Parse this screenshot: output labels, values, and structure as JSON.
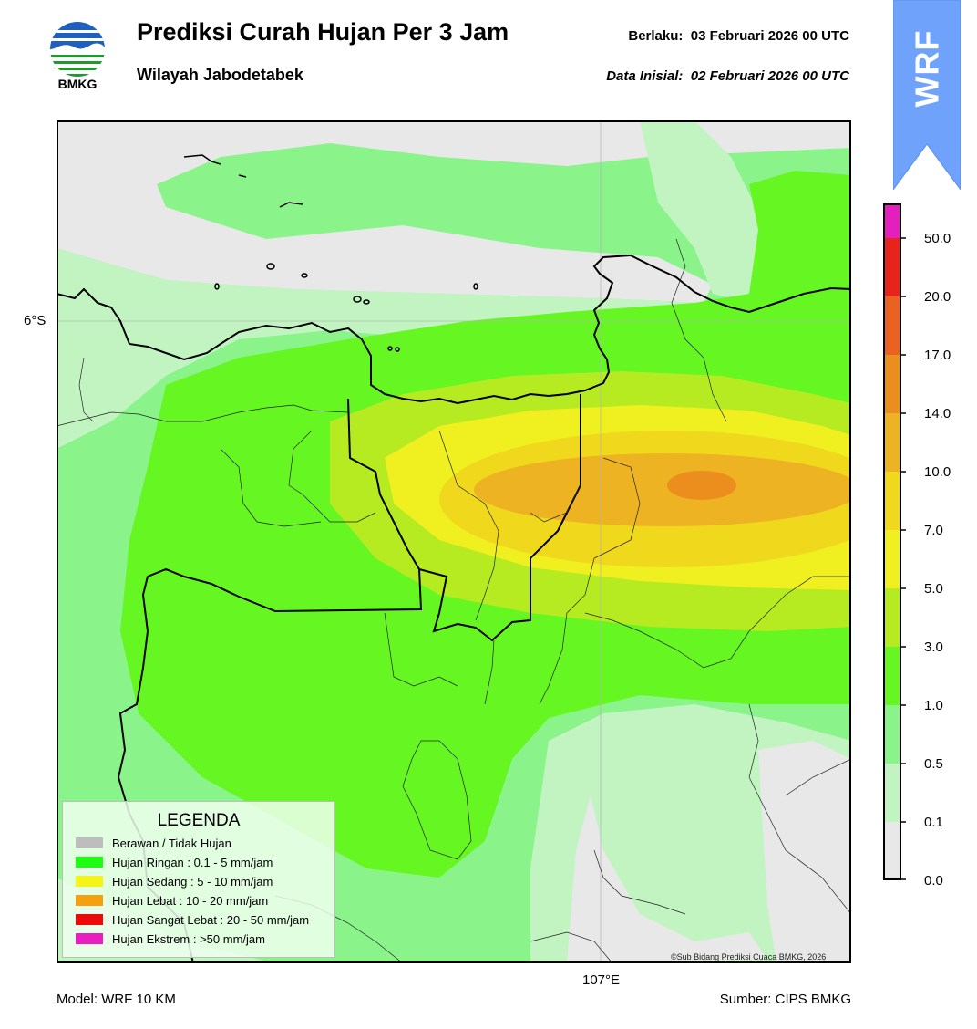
{
  "header": {
    "logo_text": "BMKG",
    "title": "Prediksi Curah Hujan Per 3 Jam",
    "subtitle": "Wilayah Jabodetabek",
    "valid_label": "Berlaku:",
    "valid_time": "03 Februari 2026 00 UTC",
    "init_label": "Data Inisial:",
    "init_time": "02 Februari 2026 00 UTC"
  },
  "badge": {
    "text": "WRF",
    "color": "#6fa3fb"
  },
  "map": {
    "lat_label": "6°S",
    "lon_label": "107°E",
    "copyright": "©Sub Bidang Prediksi Cuaca BMKG, 2026"
  },
  "colorbar": {
    "labels": [
      "50.0",
      "20.0",
      "17.0",
      "14.0",
      "10.0",
      "7.0",
      "5.0",
      "3.0",
      "1.0",
      "0.5",
      "0.1",
      "0.0"
    ],
    "colors": [
      "#e41fbd",
      "#e8231b",
      "#e9621f",
      "#ec8e1e",
      "#eeb322",
      "#f0d81d",
      "#f0f020",
      "#b6eb22",
      "#66f622",
      "#8af48a",
      "#c2f4c2",
      "#e8e8e8"
    ]
  },
  "legend": {
    "title": "LEGENDA",
    "items": [
      {
        "label": "Berawan / Tidak Hujan",
        "color": "#bdbdbd"
      },
      {
        "label": "Hujan Ringan : 0.1 - 5 mm/jam",
        "color": "#1efc13"
      },
      {
        "label": "Hujan Sedang : 5 - 10 mm/jam",
        "color": "#f4f41a"
      },
      {
        "label": "Hujan Lebat : 10 - 20 mm/jam",
        "color": "#f5a00c"
      },
      {
        "label": "Hujan Sangat Lebat : 20 - 50 mm/jam",
        "color": "#ec0b0b"
      },
      {
        "label": "Hujan Ekstrem : >50 mm/jam",
        "color": "#ea1ec0"
      }
    ]
  },
  "footer": {
    "model": "Model: WRF 10 KM",
    "source": "Sumber: CIPS BMKG"
  }
}
